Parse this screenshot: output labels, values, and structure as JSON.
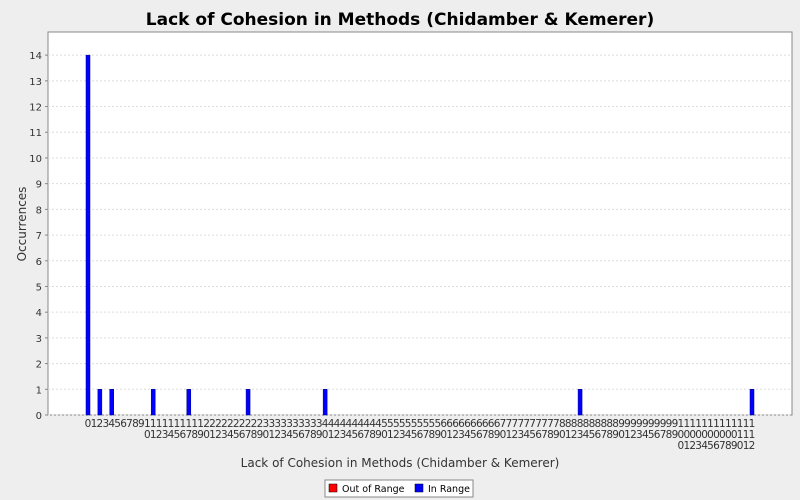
{
  "chart_data": {
    "type": "bar",
    "title": "Lack of Cohesion in Methods (Chidamber & Kemerer)",
    "x_label": "Lack of Cohesion in Methods (Chidamber & Kemerer)",
    "y_label": "Occurrences",
    "categories": [
      "0",
      "1",
      "2",
      "3",
      "4",
      "5",
      "6",
      "7",
      "8",
      "9",
      "10",
      "11",
      "12",
      "13",
      "14",
      "15",
      "16",
      "17",
      "18",
      "19",
      "20",
      "21",
      "22",
      "23",
      "24",
      "25",
      "26",
      "27",
      "28",
      "29",
      "30",
      "31",
      "32",
      "33",
      "34",
      "35",
      "36",
      "37",
      "38",
      "39",
      "40",
      "41",
      "42",
      "43",
      "44",
      "45",
      "46",
      "47",
      "48",
      "49",
      "50",
      "51",
      "52",
      "53",
      "54",
      "55",
      "56",
      "57",
      "58",
      "59",
      "60",
      "61",
      "62",
      "63",
      "64",
      "65",
      "66",
      "67",
      "68",
      "69",
      "70",
      "71",
      "72",
      "73",
      "74",
      "75",
      "76",
      "77",
      "78",
      "79",
      "80",
      "81",
      "82",
      "83",
      "84",
      "85",
      "86",
      "87",
      "88",
      "89",
      "90",
      "91",
      "92",
      "93",
      "94",
      "95",
      "96",
      "97",
      "98",
      "99",
      "100",
      "101",
      "102",
      "103",
      "104",
      "105",
      "106",
      "107",
      "108",
      "109",
      "110",
      "111",
      "112"
    ],
    "values": [
      14,
      0,
      1,
      0,
      1,
      0,
      0,
      0,
      0,
      0,
      0,
      1,
      0,
      0,
      0,
      0,
      0,
      1,
      0,
      0,
      0,
      0,
      0,
      0,
      0,
      0,
      0,
      1,
      0,
      0,
      0,
      0,
      0,
      0,
      0,
      0,
      0,
      0,
      0,
      0,
      1,
      0,
      0,
      0,
      0,
      0,
      0,
      0,
      0,
      0,
      0,
      0,
      0,
      0,
      0,
      0,
      0,
      0,
      0,
      0,
      0,
      0,
      0,
      0,
      0,
      0,
      0,
      0,
      0,
      0,
      0,
      0,
      0,
      0,
      0,
      0,
      0,
      0,
      0,
      0,
      0,
      0,
      0,
      1,
      0,
      0,
      0,
      0,
      0,
      0,
      0,
      0,
      0,
      0,
      0,
      0,
      0,
      0,
      0,
      0,
      0,
      0,
      0,
      0,
      0,
      0,
      0,
      0,
      0,
      0,
      0,
      0,
      1
    ],
    "color": "#0000ff",
    "legend": [
      {
        "name": "Out of Range",
        "color": "#ff0000"
      },
      {
        "name": "In Range",
        "color": "#0000ff"
      }
    ],
    "ylim": [
      0,
      14.9
    ],
    "yticks": [
      0,
      1,
      2,
      3,
      4,
      5,
      6,
      7,
      8,
      9,
      10,
      11,
      12,
      13,
      14
    ],
    "grid": true
  }
}
